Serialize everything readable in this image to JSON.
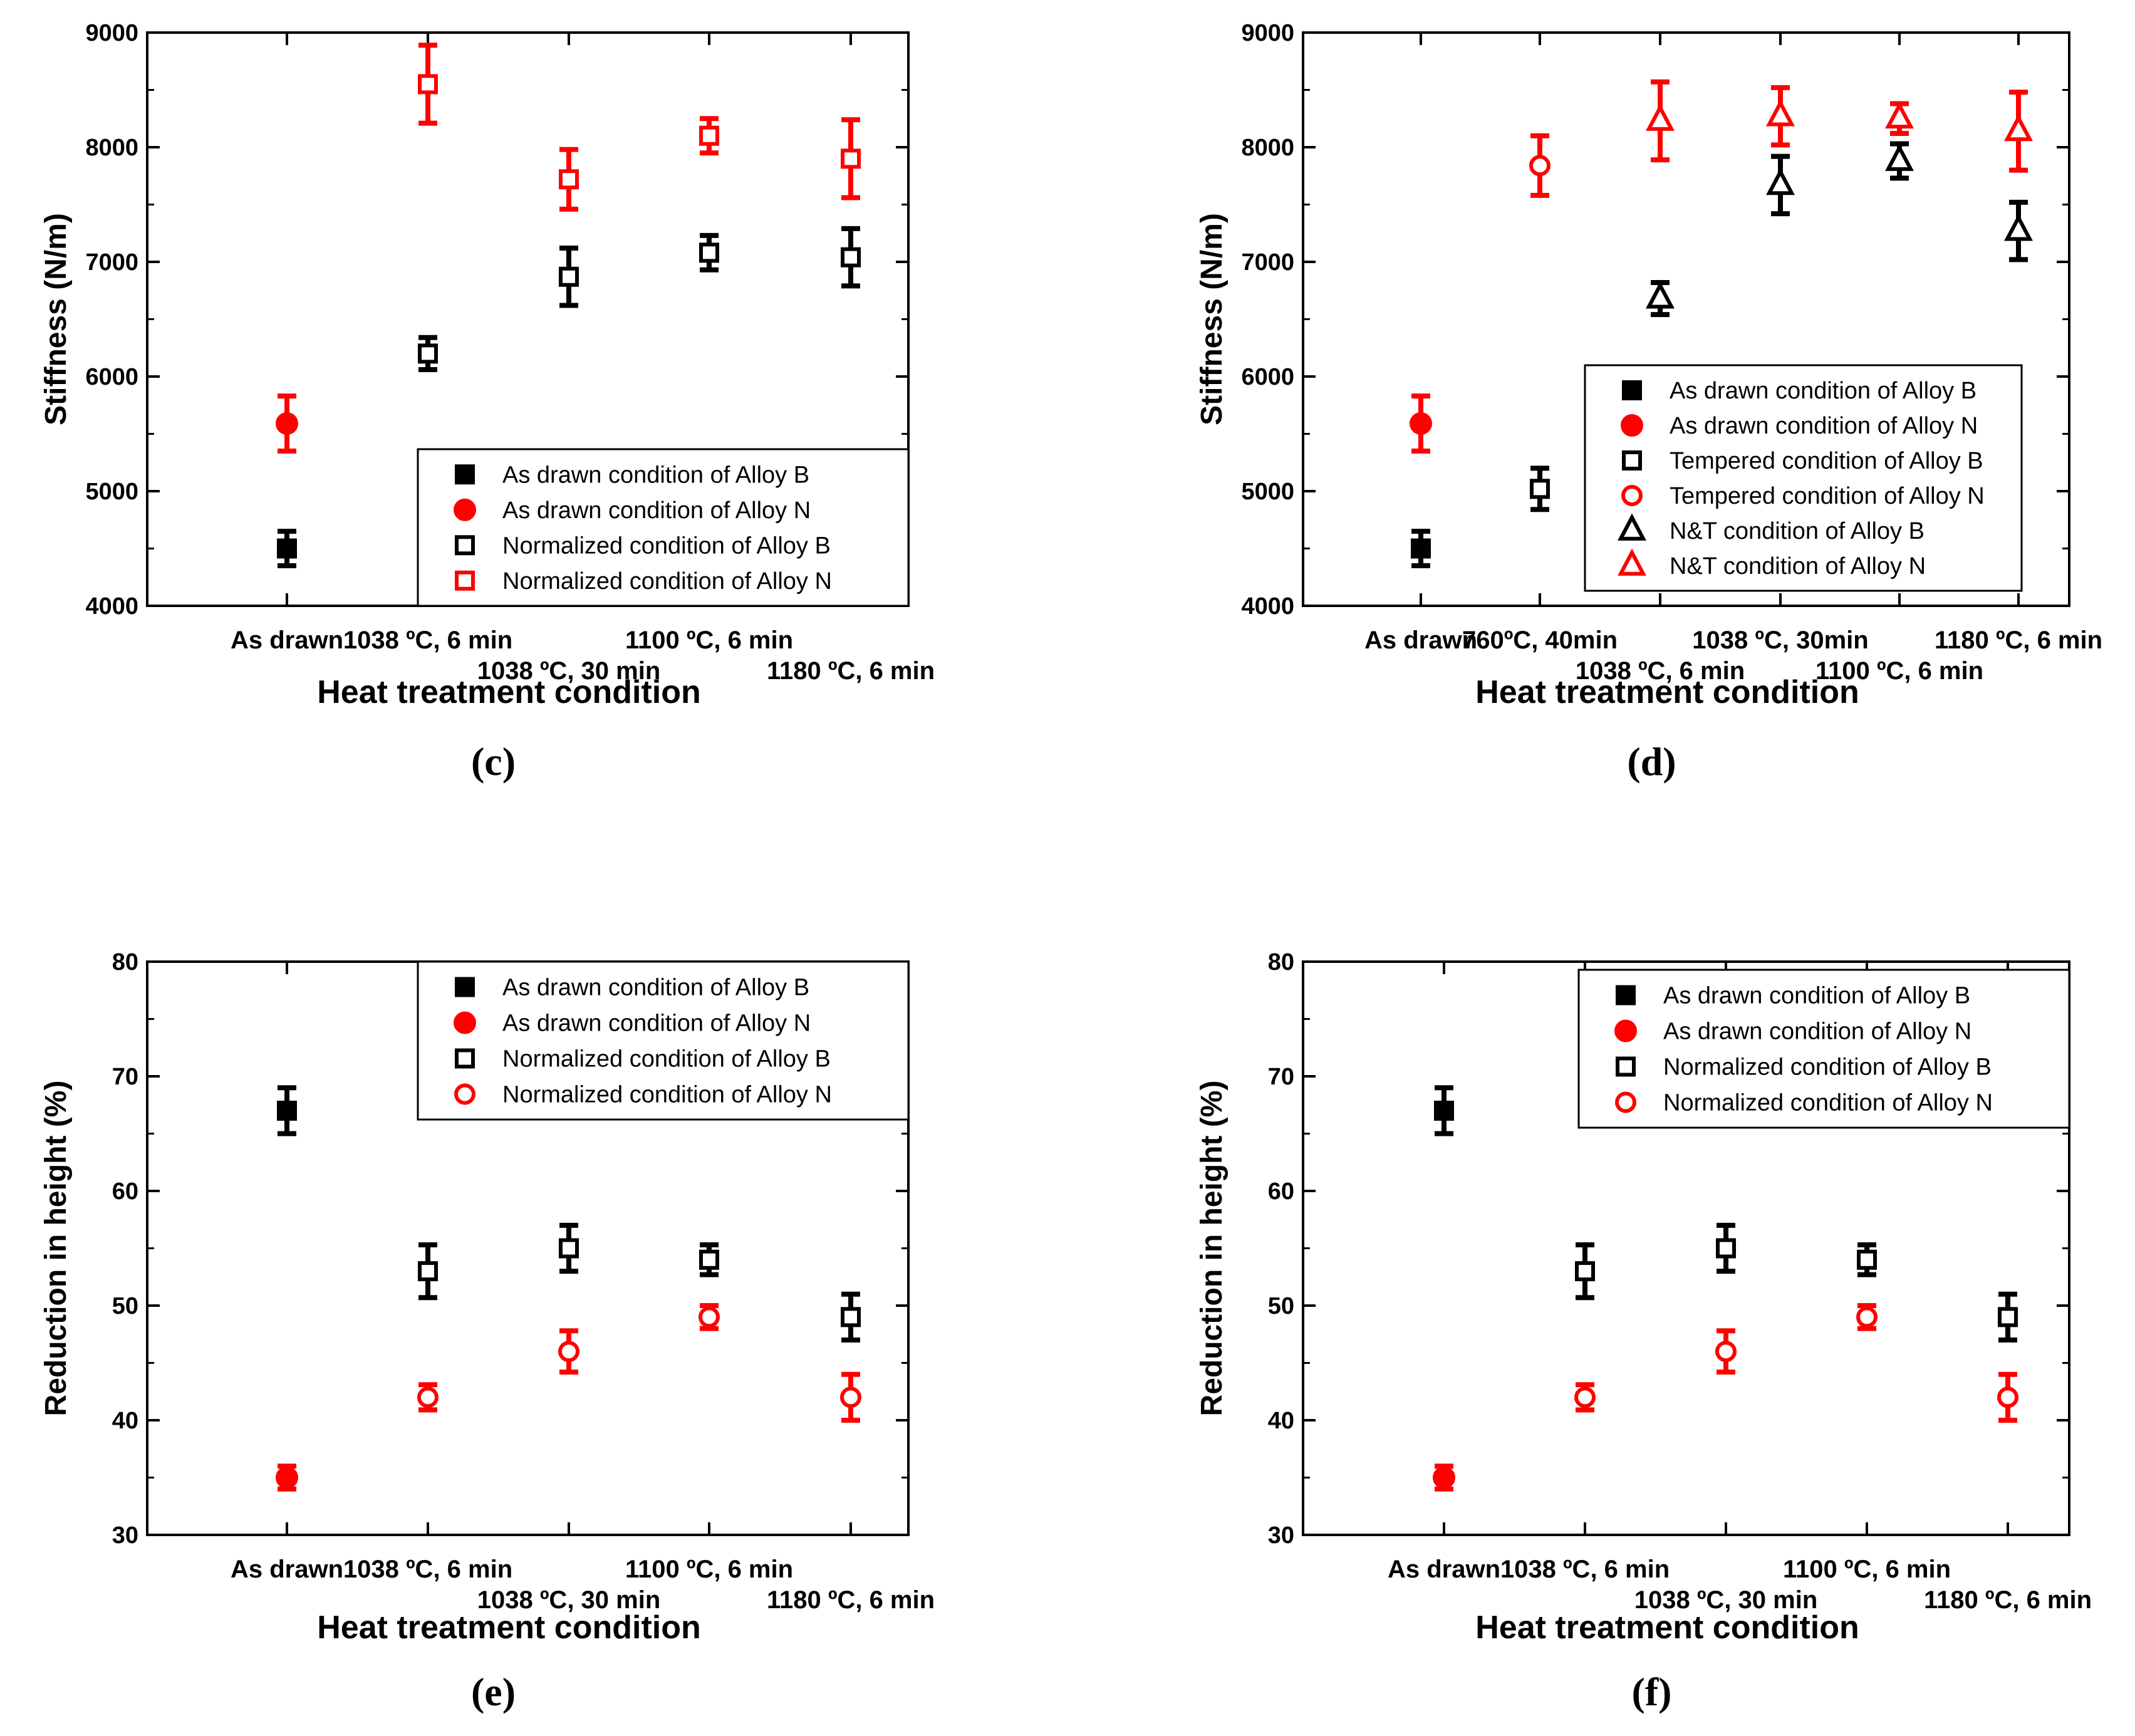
{
  "colors": {
    "black": "#000000",
    "red": "#ff0000"
  },
  "chart_data": [
    {
      "id": "c",
      "type": "scatter",
      "caption": "(c)",
      "ylabel": "Stiffness (N/m)",
      "xlabel": "Heat treatment condition",
      "ylim": [
        4000,
        9000
      ],
      "yticks": [
        4000,
        5000,
        6000,
        7000,
        8000,
        9000
      ],
      "categories": [
        {
          "label": "As drawn",
          "row": 0
        },
        {
          "label": "1038 ºC, 6 min",
          "row": 0
        },
        {
          "label": "1038 ºC, 30 min",
          "row": 1
        },
        {
          "label": "1100 ºC, 6 min",
          "row": 0
        },
        {
          "label": "1180 ºC, 6 min",
          "row": 1
        }
      ],
      "legend": {
        "position": "bottom-right"
      },
      "series": [
        {
          "name": "As drawn condition of Alloy B",
          "color": "#000000",
          "marker": "square",
          "filled": true,
          "points": [
            {
              "i": 0,
              "y": 4500,
              "err": 150
            }
          ]
        },
        {
          "name": "As drawn condition of Alloy N",
          "color": "#ff0000",
          "marker": "circle",
          "filled": true,
          "points": [
            {
              "i": 0,
              "y": 5590,
              "err": 240
            }
          ]
        },
        {
          "name": "Normalized condition of Alloy B",
          "color": "#000000",
          "marker": "square",
          "filled": false,
          "points": [
            {
              "i": 1,
              "y": 6200,
              "err": 140
            },
            {
              "i": 2,
              "y": 6870,
              "err": 250
            },
            {
              "i": 3,
              "y": 7080,
              "err": 150
            },
            {
              "i": 4,
              "y": 7040,
              "err": 250
            }
          ]
        },
        {
          "name": "Normalized condition of Alloy N",
          "color": "#ff0000",
          "marker": "square",
          "filled": false,
          "points": [
            {
              "i": 1,
              "y": 8550,
              "err": 340
            },
            {
              "i": 2,
              "y": 7720,
              "err": 260
            },
            {
              "i": 3,
              "y": 8100,
              "err": 150
            },
            {
              "i": 4,
              "y": 7900,
              "err": 340
            }
          ]
        }
      ]
    },
    {
      "id": "d",
      "type": "scatter",
      "caption": "(d)",
      "ylabel": "Stiffness (N/m)",
      "xlabel": "Heat treatment condition",
      "ylim": [
        4000,
        9000
      ],
      "yticks": [
        4000,
        5000,
        6000,
        7000,
        8000,
        9000
      ],
      "categories": [
        {
          "label": "As drawn",
          "row": 0
        },
        {
          "label": "760ºC, 40min",
          "row": 0
        },
        {
          "label": "1038 ºC, 6 min",
          "row": 1
        },
        {
          "label": "1038 ºC, 30min",
          "row": 0
        },
        {
          "label": "1100 ºC, 6 min",
          "row": 1
        },
        {
          "label": "1180 ºC, 6 min",
          "row": 0
        }
      ],
      "legend": {
        "position": "bottom-right"
      },
      "series": [
        {
          "name": "As drawn condition of Alloy B",
          "color": "#000000",
          "marker": "square",
          "filled": true,
          "points": [
            {
              "i": 0,
              "y": 4500,
              "err": 150
            }
          ]
        },
        {
          "name": "As drawn condition of Alloy N",
          "color": "#ff0000",
          "marker": "circle",
          "filled": true,
          "points": [
            {
              "i": 0,
              "y": 5590,
              "err": 240
            }
          ]
        },
        {
          "name": "Tempered condition of Alloy B",
          "color": "#000000",
          "marker": "square",
          "filled": false,
          "points": [
            {
              "i": 1,
              "y": 5020,
              "err": 180
            }
          ]
        },
        {
          "name": "Tempered condition of Alloy N",
          "color": "#ff0000",
          "marker": "circle",
          "filled": false,
          "points": [
            {
              "i": 1,
              "y": 7840,
              "err": 260
            }
          ]
        },
        {
          "name": "N&T condition of Alloy B",
          "color": "#000000",
          "marker": "triangle",
          "filled": false,
          "points": [
            {
              "i": 2,
              "y": 6680,
              "err": 140
            },
            {
              "i": 3,
              "y": 7670,
              "err": 250
            },
            {
              "i": 4,
              "y": 7880,
              "err": 150
            },
            {
              "i": 5,
              "y": 7270,
              "err": 250
            }
          ]
        },
        {
          "name": "N&T condition of Alloy N",
          "color": "#ff0000",
          "marker": "triangle",
          "filled": false,
          "points": [
            {
              "i": 2,
              "y": 8230,
              "err": 340
            },
            {
              "i": 3,
              "y": 8270,
              "err": 250
            },
            {
              "i": 4,
              "y": 8250,
              "err": 130
            },
            {
              "i": 5,
              "y": 8140,
              "err": 340
            }
          ]
        }
      ]
    },
    {
      "id": "e",
      "type": "scatter",
      "caption": "(e)",
      "ylabel": "Reduction in height (%)",
      "xlabel": "Heat treatment condition",
      "ylim": [
        30,
        80
      ],
      "yticks": [
        30,
        40,
        50,
        60,
        70,
        80
      ],
      "categories": [
        {
          "label": "As drawn",
          "row": 0
        },
        {
          "label": "1038 ºC, 6 min",
          "row": 0
        },
        {
          "label": "1038 ºC, 30 min",
          "row": 1
        },
        {
          "label": "1100 ºC, 6 min",
          "row": 0
        },
        {
          "label": "1180 ºC, 6 min",
          "row": 1
        }
      ],
      "legend": {
        "position": "top-right"
      },
      "series": [
        {
          "name": "As drawn condition of Alloy B",
          "color": "#000000",
          "marker": "square",
          "filled": true,
          "points": [
            {
              "i": 0,
              "y": 67,
              "err": 2
            }
          ]
        },
        {
          "name": "As drawn condition of Alloy N",
          "color": "#ff0000",
          "marker": "circle",
          "filled": true,
          "points": [
            {
              "i": 0,
              "y": 35,
              "err": 1
            }
          ]
        },
        {
          "name": "Normalized condition of Alloy B",
          "color": "#000000",
          "marker": "square",
          "filled": false,
          "points": [
            {
              "i": 1,
              "y": 53,
              "err": 2.3
            },
            {
              "i": 2,
              "y": 55,
              "err": 2
            },
            {
              "i": 3,
              "y": 54,
              "err": 1.3
            },
            {
              "i": 4,
              "y": 49,
              "err": 2
            }
          ]
        },
        {
          "name": "Normalized condition of Alloy N",
          "color": "#ff0000",
          "marker": "circle",
          "filled": false,
          "points": [
            {
              "i": 1,
              "y": 42,
              "err": 1.1
            },
            {
              "i": 2,
              "y": 46,
              "err": 1.8
            },
            {
              "i": 3,
              "y": 49,
              "err": 1
            },
            {
              "i": 4,
              "y": 42,
              "err": 2
            }
          ]
        }
      ]
    },
    {
      "id": "f",
      "type": "scatter",
      "caption": "(f)",
      "ylabel": "Reduction in height (%)",
      "xlabel": "Heat treatment condition",
      "ylim": [
        30,
        80
      ],
      "yticks": [
        30,
        40,
        50,
        60,
        70,
        80
      ],
      "categories": [
        {
          "label": "As drawn",
          "row": 0
        },
        {
          "label": "1038 ºC, 6 min",
          "row": 0
        },
        {
          "label": "1038 ºC, 30 min",
          "row": 1
        },
        {
          "label": "1100 ºC, 6 min",
          "row": 0
        },
        {
          "label": "1180 ºC, 6 min",
          "row": 1
        }
      ],
      "legend": {
        "position": "top-right"
      },
      "series": [
        {
          "name": "As drawn condition of Alloy B",
          "color": "#000000",
          "marker": "square",
          "filled": true,
          "points": [
            {
              "i": 0,
              "y": 67,
              "err": 2
            }
          ]
        },
        {
          "name": "As drawn condition of Alloy N",
          "color": "#ff0000",
          "marker": "circle",
          "filled": true,
          "points": [
            {
              "i": 0,
              "y": 35,
              "err": 1
            }
          ]
        },
        {
          "name": "Normalized condition of Alloy B",
          "color": "#000000",
          "marker": "square",
          "filled": false,
          "points": [
            {
              "i": 1,
              "y": 53,
              "err": 2.3
            },
            {
              "i": 2,
              "y": 55,
              "err": 2
            },
            {
              "i": 3,
              "y": 54,
              "err": 1.3
            },
            {
              "i": 4,
              "y": 49,
              "err": 2
            }
          ]
        },
        {
          "name": "Normalized condition of Alloy N",
          "color": "#ff0000",
          "marker": "circle",
          "filled": false,
          "points": [
            {
              "i": 1,
              "y": 42,
              "err": 1.1
            },
            {
              "i": 2,
              "y": 46,
              "err": 1.8
            },
            {
              "i": 3,
              "y": 49,
              "err": 1
            },
            {
              "i": 4,
              "y": 42,
              "err": 2
            }
          ]
        }
      ]
    }
  ]
}
